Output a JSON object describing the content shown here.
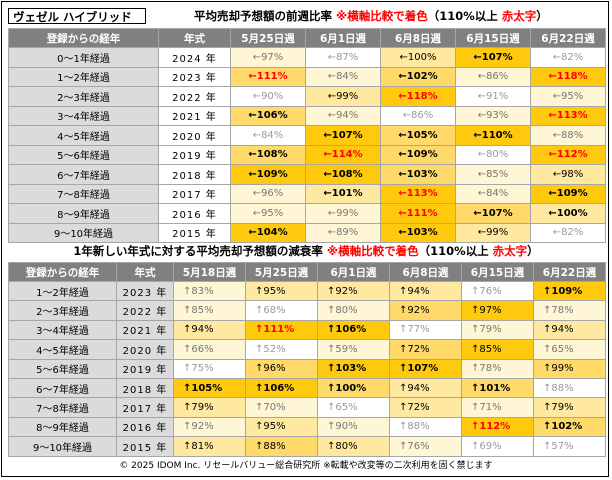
{
  "model_name": "ヴェゼル ハイブリッド",
  "table1": {
    "title_main": "平均売却予想額の前週比率",
    "title_note": "※横軸比較で着色",
    "title_paren_open": "（110%以上",
    "title_red": "赤太字",
    "title_paren_close": "）",
    "headers": [
      "登録からの経年",
      "年式",
      "5月25日週",
      "6月1日週",
      "6月8日週",
      "6月15日週",
      "6月22日週"
    ],
    "rows": [
      {
        "label": "0～1年経過",
        "year": "2024 年",
        "cells": [
          {
            "t": "←97%",
            "c": "w1"
          },
          {
            "t": "←87%",
            "c": "w0"
          },
          {
            "t": "←100%",
            "c": "w2"
          },
          {
            "t": "←107%",
            "c": "w4",
            "b": true
          },
          {
            "t": "←82%",
            "c": "w0"
          }
        ]
      },
      {
        "label": "1～2年経過",
        "year": "2023 年",
        "cells": [
          {
            "t": "←111%",
            "c": "w3",
            "r": true
          },
          {
            "t": "←84%",
            "c": "w1"
          },
          {
            "t": "←102%",
            "c": "w3",
            "b": true
          },
          {
            "t": "←86%",
            "c": "w1"
          },
          {
            "t": "←118%",
            "c": "w4",
            "r": true
          }
        ]
      },
      {
        "label": "2～3年経過",
        "year": "2022 年",
        "cells": [
          {
            "t": "←90%",
            "c": "w0"
          },
          {
            "t": "←99%",
            "c": "w2"
          },
          {
            "t": "←118%",
            "c": "w4",
            "r": true
          },
          {
            "t": "←91%",
            "c": "w0"
          },
          {
            "t": "←95%",
            "c": "w1"
          }
        ]
      },
      {
        "label": "3～4年経過",
        "year": "2021 年",
        "cells": [
          {
            "t": "←106%",
            "c": "w3",
            "b": true
          },
          {
            "t": "←94%",
            "c": "w1"
          },
          {
            "t": "←86%",
            "c": "w0"
          },
          {
            "t": "←93%",
            "c": "w1"
          },
          {
            "t": "←113%",
            "c": "w4",
            "r": true
          }
        ]
      },
      {
        "label": "4～5年経過",
        "year": "2020 年",
        "cells": [
          {
            "t": "←84%",
            "c": "w0"
          },
          {
            "t": "←107%",
            "c": "w4",
            "b": true
          },
          {
            "t": "←105%",
            "c": "w3",
            "b": true
          },
          {
            "t": "←110%",
            "c": "w4",
            "b": true
          },
          {
            "t": "←88%",
            "c": "w1"
          }
        ]
      },
      {
        "label": "5～6年経過",
        "year": "2019 年",
        "cells": [
          {
            "t": "←108%",
            "c": "w3",
            "b": true
          },
          {
            "t": "←114%",
            "c": "w4",
            "r": true
          },
          {
            "t": "←109%",
            "c": "w3",
            "b": true
          },
          {
            "t": "←80%",
            "c": "w0"
          },
          {
            "t": "←112%",
            "c": "w4",
            "r": true
          }
        ]
      },
      {
        "label": "6～7年経過",
        "year": "2018 年",
        "cells": [
          {
            "t": "←109%",
            "c": "w4",
            "b": true
          },
          {
            "t": "←108%",
            "c": "w4",
            "b": true
          },
          {
            "t": "←103%",
            "c": "w3",
            "b": true
          },
          {
            "t": "←85%",
            "c": "w1"
          },
          {
            "t": "←98%",
            "c": "w2"
          }
        ]
      },
      {
        "label": "7～8年経過",
        "year": "2017 年",
        "cells": [
          {
            "t": "←96%",
            "c": "w1"
          },
          {
            "t": "←101%",
            "c": "w2",
            "b": true
          },
          {
            "t": "←113%",
            "c": "w4",
            "r": true
          },
          {
            "t": "←84%",
            "c": "w1"
          },
          {
            "t": "←109%",
            "c": "w4",
            "b": true
          }
        ]
      },
      {
        "label": "8～9年経過",
        "year": "2016 年",
        "cells": [
          {
            "t": "←95%",
            "c": "w1"
          },
          {
            "t": "←99%",
            "c": "w1"
          },
          {
            "t": "←111%",
            "c": "w4",
            "r": true
          },
          {
            "t": "←107%",
            "c": "w3",
            "b": true
          },
          {
            "t": "←100%",
            "c": "w2",
            "b": true
          }
        ]
      },
      {
        "label": "9～10年経過",
        "year": "2015 年",
        "cells": [
          {
            "t": "←104%",
            "c": "w4",
            "b": true
          },
          {
            "t": "←89%",
            "c": "w1"
          },
          {
            "t": "←103%",
            "c": "w4",
            "b": true
          },
          {
            "t": "←99%",
            "c": "w2"
          },
          {
            "t": "←82%",
            "c": "w0"
          }
        ]
      }
    ]
  },
  "table2": {
    "title_main": "1年新しい年式に対する平均売却予想額の減衰率",
    "title_note": "※横軸比較で着色",
    "title_paren_open": "（110%以上",
    "title_red": "赤太字",
    "title_paren_close": "）",
    "headers": [
      "登録からの経年",
      "年式",
      "5月18日週",
      "5月25日週",
      "6月1日週",
      "6月8日週",
      "6月15日週",
      "6月22日週"
    ],
    "rows": [
      {
        "label": "1～2年経過",
        "year": "2023 年",
        "cells": [
          {
            "t": "↑83%",
            "c": "w1"
          },
          {
            "t": "↑95%",
            "c": "w2"
          },
          {
            "t": "↑92%",
            "c": "w2"
          },
          {
            "t": "↑94%",
            "c": "w2"
          },
          {
            "t": "↑76%",
            "c": "w0"
          },
          {
            "t": "↑109%",
            "c": "w4",
            "b": true
          }
        ]
      },
      {
        "label": "2～3年経過",
        "year": "2022 年",
        "cells": [
          {
            "t": "↑85%",
            "c": "w1"
          },
          {
            "t": "↑68%",
            "c": "w0"
          },
          {
            "t": "↑80%",
            "c": "w1"
          },
          {
            "t": "↑92%",
            "c": "w3"
          },
          {
            "t": "↑97%",
            "c": "w4"
          },
          {
            "t": "↑78%",
            "c": "w1"
          }
        ]
      },
      {
        "label": "3～4年経過",
        "year": "2021 年",
        "cells": [
          {
            "t": "↑94%",
            "c": "w2"
          },
          {
            "t": "↑111%",
            "c": "w4",
            "r": true
          },
          {
            "t": "↑106%",
            "c": "w4",
            "b": true
          },
          {
            "t": "↑77%",
            "c": "w0"
          },
          {
            "t": "↑79%",
            "c": "w1"
          },
          {
            "t": "↑94%",
            "c": "w2"
          }
        ]
      },
      {
        "label": "4～5年経過",
        "year": "2020 年",
        "cells": [
          {
            "t": "↑66%",
            "c": "w1"
          },
          {
            "t": "↑52%",
            "c": "w0"
          },
          {
            "t": "↑59%",
            "c": "w1"
          },
          {
            "t": "↑72%",
            "c": "w3"
          },
          {
            "t": "↑85%",
            "c": "w4"
          },
          {
            "t": "↑65%",
            "c": "w1"
          }
        ]
      },
      {
        "label": "5～6年経過",
        "year": "2019 年",
        "cells": [
          {
            "t": "↑75%",
            "c": "w0"
          },
          {
            "t": "↑96%",
            "c": "w3"
          },
          {
            "t": "↑103%",
            "c": "w4",
            "b": true
          },
          {
            "t": "↑107%",
            "c": "w4",
            "b": true
          },
          {
            "t": "↑78%",
            "c": "w1"
          },
          {
            "t": "↑99%",
            "c": "w3"
          }
        ]
      },
      {
        "label": "6～7年経過",
        "year": "2018 年",
        "cells": [
          {
            "t": "↑105%",
            "c": "w4",
            "b": true
          },
          {
            "t": "↑106%",
            "c": "w4",
            "b": true
          },
          {
            "t": "↑100%",
            "c": "w3",
            "b": true
          },
          {
            "t": "↑94%",
            "c": "w2"
          },
          {
            "t": "↑101%",
            "c": "w3",
            "b": true
          },
          {
            "t": "↑88%",
            "c": "w0"
          }
        ]
      },
      {
        "label": "7～8年経過",
        "year": "2017 年",
        "cells": [
          {
            "t": "↑79%",
            "c": "w2"
          },
          {
            "t": "↑70%",
            "c": "w1"
          },
          {
            "t": "↑65%",
            "c": "w0"
          },
          {
            "t": "↑72%",
            "c": "w2"
          },
          {
            "t": "↑71%",
            "c": "w1"
          },
          {
            "t": "↑79%",
            "c": "w2"
          }
        ]
      },
      {
        "label": "8～9年経過",
        "year": "2016 年",
        "cells": [
          {
            "t": "↑92%",
            "c": "w1"
          },
          {
            "t": "↑95%",
            "c": "w2"
          },
          {
            "t": "↑90%",
            "c": "w1"
          },
          {
            "t": "↑88%",
            "c": "w0"
          },
          {
            "t": "↑112%",
            "c": "w4",
            "r": true
          },
          {
            "t": "↑102%",
            "c": "w3",
            "b": true
          }
        ]
      },
      {
        "label": "9～10年経過",
        "year": "2015 年",
        "cells": [
          {
            "t": "↑81%",
            "c": "w2"
          },
          {
            "t": "↑88%",
            "c": "w3"
          },
          {
            "t": "↑80%",
            "c": "w2"
          },
          {
            "t": "↑76%",
            "c": "w1"
          },
          {
            "t": "↑69%",
            "c": "w0"
          },
          {
            "t": "↑57%",
            "c": "w0"
          }
        ]
      }
    ]
  },
  "footer": "© 2025 IDOM Inc. リセールバリュー総合研究所 ※転載や改変等の二次利用を固く禁じます"
}
